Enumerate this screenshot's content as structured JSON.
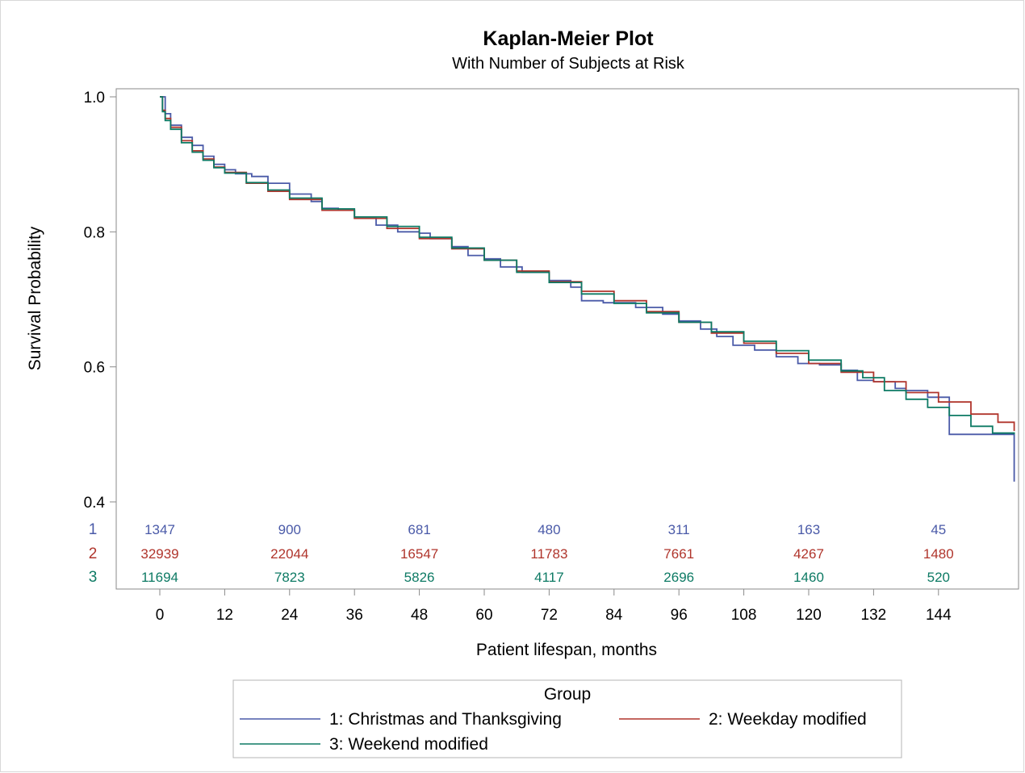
{
  "chart_data": {
    "type": "line",
    "title": "Kaplan-Meier Plot",
    "subtitle": "With Number of Subjects at Risk",
    "xlabel": "Patient lifespan, months",
    "ylabel": "Survival Probability",
    "xlim": [
      -4,
      158
    ],
    "ylim": [
      0.4,
      1.0
    ],
    "x_ticks": [
      0,
      12,
      24,
      36,
      48,
      60,
      72,
      84,
      96,
      108,
      120,
      132,
      144
    ],
    "y_ticks": [
      0.4,
      0.6,
      0.8,
      1.0
    ],
    "y_tick_labels": [
      "0.4",
      "0.6",
      "0.8",
      "1.0"
    ],
    "grid": false,
    "legend_title": "Group",
    "legend_position": "bottom",
    "series": [
      {
        "name": "1: Christmas and Thanksgiving",
        "color": "#4a5aa8",
        "points": [
          [
            0,
            1.0
          ],
          [
            1,
            0.975
          ],
          [
            2,
            0.958
          ],
          [
            4,
            0.94
          ],
          [
            6,
            0.928
          ],
          [
            8,
            0.912
          ],
          [
            10,
            0.9
          ],
          [
            12,
            0.892
          ],
          [
            14,
            0.886
          ],
          [
            17,
            0.882
          ],
          [
            20,
            0.872
          ],
          [
            24,
            0.856
          ],
          [
            28,
            0.845
          ],
          [
            30,
            0.835
          ],
          [
            33,
            0.832
          ],
          [
            36,
            0.82
          ],
          [
            40,
            0.81
          ],
          [
            44,
            0.8
          ],
          [
            48,
            0.798
          ],
          [
            50,
            0.79
          ],
          [
            54,
            0.778
          ],
          [
            57,
            0.765
          ],
          [
            60,
            0.76
          ],
          [
            63,
            0.748
          ],
          [
            67,
            0.74
          ],
          [
            72,
            0.728
          ],
          [
            76,
            0.718
          ],
          [
            78,
            0.698
          ],
          [
            82,
            0.695
          ],
          [
            88,
            0.688
          ],
          [
            93,
            0.678
          ],
          [
            96,
            0.668
          ],
          [
            100,
            0.656
          ],
          [
            103,
            0.645
          ],
          [
            106,
            0.632
          ],
          [
            110,
            0.625
          ],
          [
            114,
            0.615
          ],
          [
            118,
            0.605
          ],
          [
            122,
            0.603
          ],
          [
            126,
            0.595
          ],
          [
            129,
            0.58
          ],
          [
            132,
            0.578
          ],
          [
            136,
            0.568
          ],
          [
            138,
            0.565
          ],
          [
            142,
            0.555
          ],
          [
            146,
            0.5
          ],
          [
            152,
            0.5
          ],
          [
            158,
            0.5
          ],
          [
            158,
            0.43
          ]
        ]
      },
      {
        "name": "2: Weekday modified",
        "color": "#b0352c",
        "points": [
          [
            0,
            1.0
          ],
          [
            0.5,
            0.98
          ],
          [
            1,
            0.968
          ],
          [
            2,
            0.955
          ],
          [
            4,
            0.935
          ],
          [
            6,
            0.92
          ],
          [
            8,
            0.908
          ],
          [
            10,
            0.896
          ],
          [
            12,
            0.888
          ],
          [
            16,
            0.872
          ],
          [
            20,
            0.86
          ],
          [
            24,
            0.848
          ],
          [
            30,
            0.832
          ],
          [
            36,
            0.82
          ],
          [
            42,
            0.805
          ],
          [
            48,
            0.79
          ],
          [
            54,
            0.775
          ],
          [
            60,
            0.758
          ],
          [
            66,
            0.742
          ],
          [
            72,
            0.726
          ],
          [
            78,
            0.712
          ],
          [
            84,
            0.698
          ],
          [
            90,
            0.682
          ],
          [
            96,
            0.666
          ],
          [
            102,
            0.65
          ],
          [
            108,
            0.635
          ],
          [
            114,
            0.62
          ],
          [
            120,
            0.605
          ],
          [
            126,
            0.592
          ],
          [
            132,
            0.578
          ],
          [
            138,
            0.562
          ],
          [
            144,
            0.548
          ],
          [
            150,
            0.53
          ],
          [
            155,
            0.518
          ],
          [
            158,
            0.505
          ]
        ]
      },
      {
        "name": "3: Weekend modified",
        "color": "#0d7a64",
        "points": [
          [
            0,
            1.0
          ],
          [
            0.5,
            0.978
          ],
          [
            1,
            0.965
          ],
          [
            2,
            0.952
          ],
          [
            4,
            0.932
          ],
          [
            6,
            0.918
          ],
          [
            8,
            0.906
          ],
          [
            10,
            0.895
          ],
          [
            12,
            0.887
          ],
          [
            16,
            0.873
          ],
          [
            20,
            0.862
          ],
          [
            24,
            0.85
          ],
          [
            30,
            0.834
          ],
          [
            36,
            0.822
          ],
          [
            42,
            0.808
          ],
          [
            48,
            0.792
          ],
          [
            54,
            0.776
          ],
          [
            60,
            0.758
          ],
          [
            66,
            0.74
          ],
          [
            72,
            0.725
          ],
          [
            78,
            0.708
          ],
          [
            84,
            0.694
          ],
          [
            90,
            0.68
          ],
          [
            96,
            0.666
          ],
          [
            102,
            0.652
          ],
          [
            108,
            0.638
          ],
          [
            114,
            0.624
          ],
          [
            120,
            0.61
          ],
          [
            126,
            0.594
          ],
          [
            130,
            0.584
          ],
          [
            134,
            0.565
          ],
          [
            138,
            0.552
          ],
          [
            142,
            0.54
          ],
          [
            146,
            0.528
          ],
          [
            150,
            0.512
          ],
          [
            154,
            0.502
          ],
          [
            158,
            0.5
          ]
        ]
      }
    ],
    "at_risk": {
      "x": [
        0,
        24,
        48,
        72,
        96,
        120,
        144
      ],
      "groups": [
        {
          "label": "1",
          "color": "#4a5aa8",
          "counts": [
            "1347",
            "900",
            "681",
            "480",
            "311",
            "163",
            "45"
          ]
        },
        {
          "label": "2",
          "color": "#b0352c",
          "counts": [
            "32939",
            "22044",
            "16547",
            "11783",
            "7661",
            "4267",
            "1480"
          ]
        },
        {
          "label": "3",
          "color": "#0d7a64",
          "counts": [
            "11694",
            "7823",
            "5826",
            "4117",
            "2696",
            "1460",
            "520"
          ]
        }
      ]
    }
  }
}
